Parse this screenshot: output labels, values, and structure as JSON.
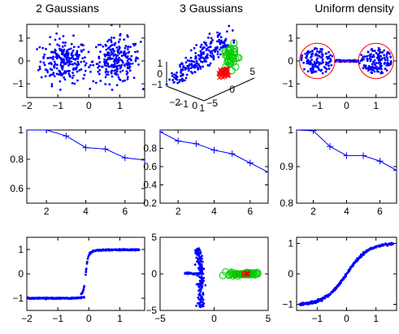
{
  "figure": {
    "column_titles": [
      "2 Gaussians",
      "3 Gaussians",
      "Uniform density"
    ]
  },
  "colors": {
    "blue": "#0000ff",
    "red": "#ff0000",
    "green": "#00cc00",
    "axis": "#000000"
  },
  "chart_data": [
    {
      "type": "scatter",
      "title": "2 Gaussians",
      "xlim": [
        -2,
        1.8
      ],
      "ylim": [
        -1.6,
        1.6
      ],
      "xticks": [
        -2,
        -1,
        0,
        1
      ],
      "yticks": [
        -1,
        0,
        1
      ],
      "clusters": [
        {
          "center": [
            -0.8,
            0.0
          ],
          "spread": [
            0.38,
            0.48
          ],
          "n": 230,
          "color": "#0000ff"
        },
        {
          "center": [
            0.9,
            0.0
          ],
          "spread": [
            0.38,
            0.48
          ],
          "n": 230,
          "color": "#0000ff"
        }
      ]
    },
    {
      "type": "scatter3d",
      "title": "3 Gaussians",
      "tick_labels": [
        "1",
        "0",
        "-1",
        "-2",
        "-1",
        "0",
        "1",
        "-5",
        "0",
        "5"
      ],
      "clusters": [
        {
          "label": "blue",
          "marker": "dot",
          "color": "#0000ff",
          "n": 220
        },
        {
          "label": "green",
          "marker": "circle",
          "color": "#00cc00",
          "n": 40
        },
        {
          "label": "red",
          "marker": "x",
          "color": "#ff0000",
          "n": 40
        }
      ]
    },
    {
      "type": "scatter",
      "title": "Uniform density",
      "xlim": [
        -1.7,
        1.7
      ],
      "ylim": [
        -1.6,
        1.6
      ],
      "xticks": [
        -1,
        0,
        1
      ],
      "yticks": [
        -1,
        0,
        1
      ],
      "shape": "two discs (radius 0.6, centers at x=-1 and x=1) joined by a thin bar",
      "outline_color": "#ff0000",
      "points_color": "#0000ff"
    },
    {
      "type": "line",
      "x": [
        1,
        2,
        3,
        4,
        5,
        6,
        7
      ],
      "y": [
        1.0,
        1.0,
        0.96,
        0.88,
        0.87,
        0.81,
        0.795
      ],
      "xlim": [
        1,
        7
      ],
      "ylim": [
        0.5,
        1.0
      ],
      "xticks": [
        2,
        4,
        6
      ],
      "yticks": [
        0.6,
        0.8,
        1
      ],
      "marker": "+",
      "color": "#0000ff"
    },
    {
      "type": "line",
      "x": [
        1,
        2,
        3,
        4,
        5,
        6,
        7
      ],
      "y": [
        0.98,
        0.88,
        0.85,
        0.78,
        0.74,
        0.64,
        0.54
      ],
      "xlim": [
        1,
        7
      ],
      "ylim": [
        0.2,
        1.0
      ],
      "xticks": [
        2,
        4,
        6
      ],
      "yticks": [
        0.2,
        0.4,
        0.6,
        0.8
      ],
      "marker": "+",
      "color": "#0000ff"
    },
    {
      "type": "line",
      "x": [
        1,
        2,
        3,
        4,
        5,
        6,
        7
      ],
      "y": [
        1.0,
        0.998,
        0.955,
        0.93,
        0.93,
        0.915,
        0.89
      ],
      "xlim": [
        1,
        7
      ],
      "ylim": [
        0.8,
        1.0
      ],
      "xticks": [
        2,
        4,
        6
      ],
      "yticks": [
        0.8,
        0.9,
        1
      ],
      "marker": "+",
      "color": "#0000ff"
    },
    {
      "type": "scatter",
      "shape": "sigmoid",
      "xlim": [
        -2,
        1.8
      ],
      "ylim": [
        -1.5,
        1.5
      ],
      "xticks": [
        -2,
        -1,
        0,
        1
      ],
      "yticks": [
        -1,
        0,
        1
      ],
      "color": "#0000ff"
    },
    {
      "type": "scatter",
      "shape": "three-arm star with green and red clusters",
      "xlim": [
        -5,
        5
      ],
      "ylim": [
        -5,
        5
      ],
      "xticks": [
        -5,
        0,
        5
      ],
      "yticks": [
        -5,
        0,
        5
      ],
      "colors": [
        "#0000ff",
        "#00cc00",
        "#ff0000"
      ]
    },
    {
      "type": "scatter",
      "shape": "sigmoid",
      "xlim": [
        -1.7,
        1.7
      ],
      "ylim": [
        -1.2,
        1.2
      ],
      "xticks": [
        -1,
        0,
        1
      ],
      "yticks": [
        -1,
        0,
        1
      ],
      "color": "#0000ff"
    }
  ]
}
